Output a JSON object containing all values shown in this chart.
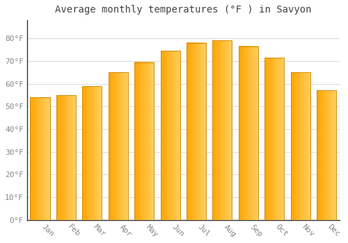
{
  "title": "Average monthly temperatures (°F ) in Savyon",
  "months": [
    "Jan",
    "Feb",
    "Mar",
    "Apr",
    "May",
    "Jun",
    "Jul",
    "Aug",
    "Sep",
    "Oct",
    "Nov",
    "Dec"
  ],
  "values": [
    54,
    55,
    59,
    65,
    69.5,
    74.5,
    78,
    79,
    76.5,
    71.5,
    65,
    57
  ],
  "bar_color_main": "#FFA500",
  "bar_color_light": "#FFD060",
  "bar_edge_color": "#C8860A",
  "ylim": [
    0,
    88
  ],
  "yticks": [
    0,
    10,
    20,
    30,
    40,
    50,
    60,
    70,
    80
  ],
  "ytick_labels": [
    "0°F",
    "10°F",
    "20°F",
    "30°F",
    "40°F",
    "50°F",
    "60°F",
    "70°F",
    "80°F"
  ],
  "background_color": "#FFFFFF",
  "grid_color": "#DDDDDD",
  "title_fontsize": 10,
  "tick_fontsize": 8,
  "font_family": "monospace"
}
